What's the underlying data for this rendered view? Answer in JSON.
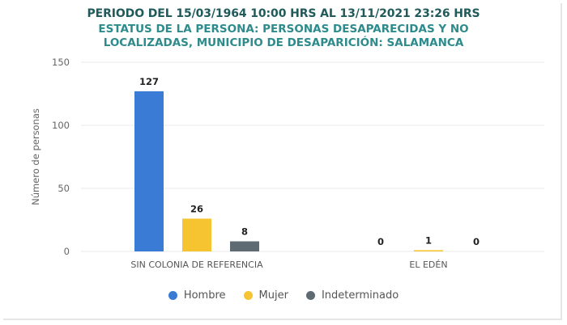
{
  "title": "PERIODO DEL 15/03/1964 10:00 HRS AL 13/11/2021 23:26 HRS",
  "subtitle_line1": "ESTATUS DE LA PERSONA: PERSONAS DESAPARECIDAS Y NO",
  "subtitle_line2": "LOCALIZADAS, MUNICIPIO DE DESAPARICIÓN: SALAMANCA",
  "colors": {
    "Hombre": "#3a7bd5",
    "Mujer": "#f6c431",
    "Indeterminado": "#5e6b73",
    "grid": "#e8e8e8",
    "axis_text": "#666666",
    "title": "#215a5a",
    "subtitle": "#2e8b8b"
  },
  "chart_data": {
    "type": "bar",
    "ylabel": "Número de personas",
    "xlabel": "",
    "ylim": [
      0,
      150
    ],
    "yticks": [
      0,
      50,
      100,
      150
    ],
    "grid": true,
    "legend_position": "bottom",
    "categories": [
      "SIN COLONIA DE REFERENCIA",
      "EL EDÉN"
    ],
    "series": [
      {
        "name": "Hombre",
        "values": [
          127,
          0
        ]
      },
      {
        "name": "Mujer",
        "values": [
          26,
          1
        ]
      },
      {
        "name": "Indeterminado",
        "values": [
          8,
          0
        ]
      }
    ]
  }
}
